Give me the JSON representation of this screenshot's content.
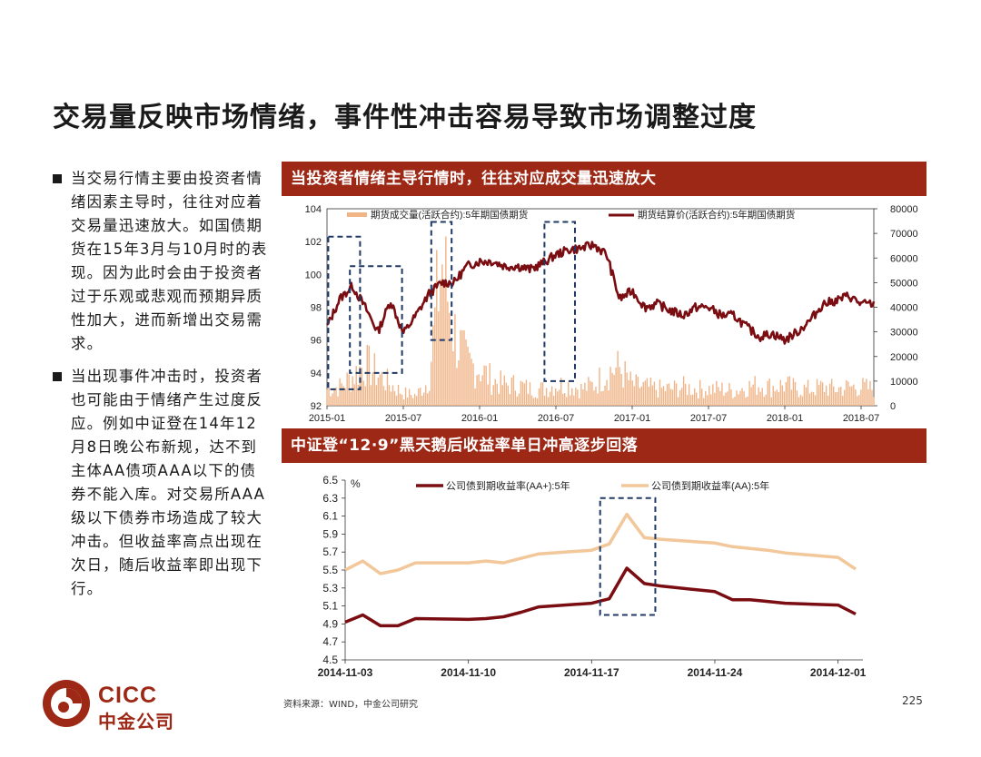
{
  "title": "交易量反映市场情绪，事件性冲击容易导致市场调整过度",
  "bullets": [
    "当交易行情主要由投资者情绪因素主导时，往往对应着交易量迅速放大。如国债期货在15年3月与10月时的表现。因为此时会由于投资者过于乐观或悲观而预期异质性加大，进而新增出交易需求。",
    "当出现事件冲击时，投资者也可能由于情绪产生过度反应。例如中证登在14年12月8日晚公布新规，达不到主体AA债项AAA以下的债券不能入库。对交易所AAA级以下债券市场造成了较大冲击。但收益率高点出现在次日，随后收益率即出现下行。"
  ],
  "banner1": "当投资者情绪主导行情时，往往对应成交量迅速放大",
  "banner2": "中证登“12·9”黑天鹅后收益率单日冲高逐步回落",
  "source": "资料来源：WIND，中金公司研究",
  "page_number": "225",
  "logo": {
    "en": "CICC",
    "cn": "中金公司"
  },
  "colors": {
    "brand": "#9c2815",
    "volume": "#f0b487",
    "price": "#7a0d12",
    "aa_plus": "#7a0d12",
    "aa": "#f2c79a"
  },
  "chart_data": [
    {
      "type": "bar+line",
      "title": "",
      "x_ticks": [
        "2015-01",
        "2015-07",
        "2016-01",
        "2016-07",
        "2017-01",
        "2017-07",
        "2018-01",
        "2018-07"
      ],
      "y_left_ticks": [
        "92",
        "94",
        "96",
        "98",
        "100",
        "102",
        "104"
      ],
      "y_right_ticks": [
        "0",
        "10000",
        "20000",
        "30000",
        "40000",
        "50000",
        "60000",
        "70000",
        "80000"
      ],
      "ylim_left": [
        92,
        104
      ],
      "ylim_right": [
        0,
        80000
      ],
      "legend_placement": "top",
      "series": [
        {
          "name": "期货成交量(活跃合约):5年期国债期货",
          "kind": "bar",
          "axis": "right",
          "points": [
            [
              "2015-01",
              8000
            ],
            [
              "2015-02",
              9000
            ],
            [
              "2015-03",
              14000
            ],
            [
              "2015-04",
              20000
            ],
            [
              "2015-05",
              15000
            ],
            [
              "2015-06",
              10000
            ],
            [
              "2015-07",
              6000
            ],
            [
              "2015-08",
              5000
            ],
            [
              "2015-09",
              12000
            ],
            [
              "2015-10",
              70000
            ],
            [
              "2015-11",
              35000
            ],
            [
              "2015-12",
              20000
            ],
            [
              "2016-01",
              18000
            ],
            [
              "2016-02",
              12000
            ],
            [
              "2016-03",
              10000
            ],
            [
              "2016-04",
              10000
            ],
            [
              "2016-05",
              8000
            ],
            [
              "2016-06",
              8000
            ],
            [
              "2016-07",
              10000
            ],
            [
              "2016-08",
              10000
            ],
            [
              "2016-09",
              8000
            ],
            [
              "2016-10",
              10000
            ],
            [
              "2016-11",
              16000
            ],
            [
              "2016-12",
              18000
            ],
            [
              "2017-01",
              10000
            ],
            [
              "2017-02",
              9000
            ],
            [
              "2017-03",
              8000
            ],
            [
              "2017-04",
              8000
            ],
            [
              "2017-05",
              9000
            ],
            [
              "2017-06",
              8000
            ],
            [
              "2017-07",
              8000
            ],
            [
              "2017-08",
              8000
            ],
            [
              "2017-09",
              7000
            ],
            [
              "2017-10",
              9000
            ],
            [
              "2017-11",
              10000
            ],
            [
              "2017-12",
              9000
            ],
            [
              "2018-01",
              10000
            ],
            [
              "2018-02",
              8000
            ],
            [
              "2018-03",
              8000
            ],
            [
              "2018-04",
              9000
            ],
            [
              "2018-05",
              8000
            ],
            [
              "2018-06",
              9000
            ],
            [
              "2018-07",
              9000
            ],
            [
              "2018-08",
              8000
            ]
          ]
        },
        {
          "name": "期货结算价(活跃合约):5年期国债期货",
          "kind": "line",
          "axis": "left",
          "points": [
            [
              "2015-01",
              96.8
            ],
            [
              "2015-02",
              98.5
            ],
            [
              "2015-03",
              99.3
            ],
            [
              "2015-04",
              98.0
            ],
            [
              "2015-05",
              96.5
            ],
            [
              "2015-06",
              98.4
            ],
            [
              "2015-07",
              96.4
            ],
            [
              "2015-08",
              97.5
            ],
            [
              "2015-09",
              98.8
            ],
            [
              "2015-10",
              99.5
            ],
            [
              "2015-11",
              99.5
            ],
            [
              "2015-12",
              100.5
            ],
            [
              "2016-01",
              100.8
            ],
            [
              "2016-02",
              100.8
            ],
            [
              "2016-03",
              100.5
            ],
            [
              "2016-04",
              100.5
            ],
            [
              "2016-05",
              100.3
            ],
            [
              "2016-06",
              100.7
            ],
            [
              "2016-07",
              101.2
            ],
            [
              "2016-08",
              101.5
            ],
            [
              "2016-09",
              101.6
            ],
            [
              "2016-10",
              101.8
            ],
            [
              "2016-11",
              101.2
            ],
            [
              "2016-12",
              98.5
            ],
            [
              "2017-01",
              99.0
            ],
            [
              "2017-02",
              98.0
            ],
            [
              "2017-03",
              98.2
            ],
            [
              "2017-04",
              97.8
            ],
            [
              "2017-05",
              97.5
            ],
            [
              "2017-06",
              98.0
            ],
            [
              "2017-07",
              98.0
            ],
            [
              "2017-08",
              97.5
            ],
            [
              "2017-09",
              97.5
            ],
            [
              "2017-10",
              96.8
            ],
            [
              "2017-11",
              96.2
            ],
            [
              "2017-12",
              96.4
            ],
            [
              "2018-01",
              96.0
            ],
            [
              "2018-02",
              96.5
            ],
            [
              "2018-03",
              97.2
            ],
            [
              "2018-04",
              98.2
            ],
            [
              "2018-05",
              98.4
            ],
            [
              "2018-06",
              98.7
            ],
            [
              "2018-07",
              98.2
            ],
            [
              "2018-08",
              98.2
            ]
          ]
        }
      ]
    },
    {
      "type": "line",
      "title": "",
      "ylabel": "%",
      "x_ticks": [
        "2014-11-03",
        "2014-11-10",
        "2014-11-17",
        "2014-11-24",
        "2014-12-01"
      ],
      "y_ticks": [
        "4.5",
        "4.7",
        "4.9",
        "5.1",
        "5.3",
        "5.5",
        "5.7",
        "5.9",
        "6.1",
        "6.3",
        "6.5"
      ],
      "ylim": [
        4.5,
        6.5
      ],
      "legend_placement": "top",
      "series": [
        {
          "name": "公司债到期收益率(AA+):5年",
          "points": [
            [
              "2014-11-03",
              4.92
            ],
            [
              "2014-11-04",
              5.0
            ],
            [
              "2014-11-05",
              4.88
            ],
            [
              "2014-11-06",
              4.88
            ],
            [
              "2014-11-07",
              4.96
            ],
            [
              "2014-11-10",
              4.95
            ],
            [
              "2014-11-11",
              4.96
            ],
            [
              "2014-11-12",
              4.98
            ],
            [
              "2014-11-13",
              5.03
            ],
            [
              "2014-11-14",
              5.09
            ],
            [
              "2014-11-17",
              5.13
            ],
            [
              "2014-11-18",
              5.18
            ],
            [
              "2014-11-19",
              5.52
            ],
            [
              "2014-11-20",
              5.35
            ],
            [
              "2014-11-21",
              5.32
            ],
            [
              "2014-11-24",
              5.26
            ],
            [
              "2014-11-25",
              5.17
            ],
            [
              "2014-11-26",
              5.17
            ],
            [
              "2014-11-27",
              5.15
            ],
            [
              "2014-11-28",
              5.13
            ],
            [
              "2014-12-01",
              5.11
            ],
            [
              "2014-12-02",
              5.01
            ]
          ]
        },
        {
          "name": "公司债到期收益率(AA):5年",
          "points": [
            [
              "2014-11-03",
              5.5
            ],
            [
              "2014-11-04",
              5.6
            ],
            [
              "2014-11-05",
              5.46
            ],
            [
              "2014-11-06",
              5.5
            ],
            [
              "2014-11-07",
              5.58
            ],
            [
              "2014-11-10",
              5.58
            ],
            [
              "2014-11-11",
              5.6
            ],
            [
              "2014-11-12",
              5.58
            ],
            [
              "2014-11-13",
              5.63
            ],
            [
              "2014-11-14",
              5.68
            ],
            [
              "2014-11-17",
              5.72
            ],
            [
              "2014-11-18",
              5.79
            ],
            [
              "2014-11-19",
              6.12
            ],
            [
              "2014-11-20",
              5.86
            ],
            [
              "2014-11-21",
              5.84
            ],
            [
              "2014-11-24",
              5.8
            ],
            [
              "2014-11-25",
              5.76
            ],
            [
              "2014-11-26",
              5.74
            ],
            [
              "2014-11-27",
              5.72
            ],
            [
              "2014-11-28",
              5.69
            ],
            [
              "2014-12-01",
              5.64
            ],
            [
              "2014-12-02",
              5.51
            ]
          ]
        }
      ]
    }
  ]
}
